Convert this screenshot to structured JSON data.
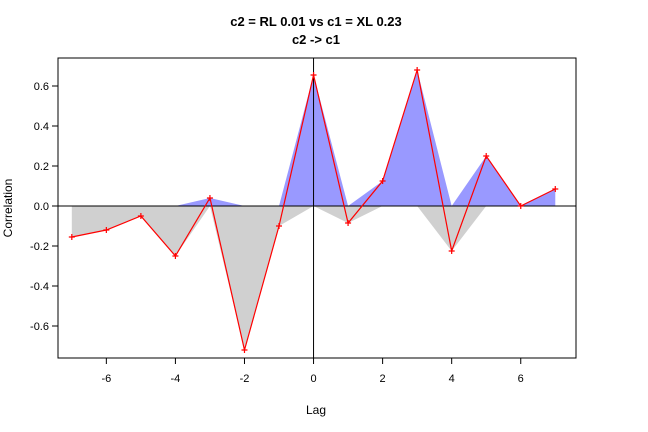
{
  "chart_data": {
    "type": "area",
    "title": "c2 = RL 0.01 vs c1 = XL 0.23",
    "subtitle": "c2 -> c1",
    "xlabel": "Lag",
    "ylabel": "Correlation",
    "xlim": [
      -7.4,
      7.6
    ],
    "ylim": [
      -0.76,
      0.74
    ],
    "x_ticks": [
      -6,
      -4,
      -2,
      0,
      2,
      4,
      6
    ],
    "x_tick_labels": [
      "-6",
      "-4",
      "-2",
      "0",
      "2",
      "4",
      "6"
    ],
    "y_ticks": [
      -0.6,
      -0.4,
      -0.2,
      0.0,
      0.2,
      0.4,
      0.6
    ],
    "y_tick_labels": [
      "-0.6",
      "-0.4",
      "-0.2",
      "0.0",
      "0.2",
      "0.4",
      "0.6"
    ],
    "lags": [
      -7,
      -6,
      -5,
      -4,
      -3,
      -2,
      -1,
      0,
      1,
      2,
      3,
      4,
      5,
      6,
      7
    ],
    "series": [
      {
        "type": "line",
        "color": "#ff0000",
        "values": [
          -0.155,
          -0.12,
          -0.05,
          -0.25,
          0.04,
          -0.72,
          -0.1,
          0.655,
          -0.085,
          0.125,
          0.68,
          -0.225,
          0.25,
          0.0,
          0.085
        ]
      },
      {
        "type": "area",
        "color": "#9999ff",
        "values": [
          0.0,
          0.0,
          0.0,
          0.0,
          0.04,
          0.0,
          0.0,
          0.655,
          0.0,
          0.125,
          0.68,
          0.0,
          0.25,
          0.0,
          0.085
        ]
      },
      {
        "type": "area",
        "color": "#d0d0d0",
        "values": [
          -0.155,
          -0.12,
          -0.05,
          -0.25,
          0.0,
          -0.72,
          -0.1,
          0.0,
          -0.085,
          0.0,
          0.0,
          -0.225,
          0.0,
          0.0,
          0.0
        ]
      }
    ],
    "grid": false,
    "reference_lines": [
      "y=0",
      "x=0"
    ]
  }
}
